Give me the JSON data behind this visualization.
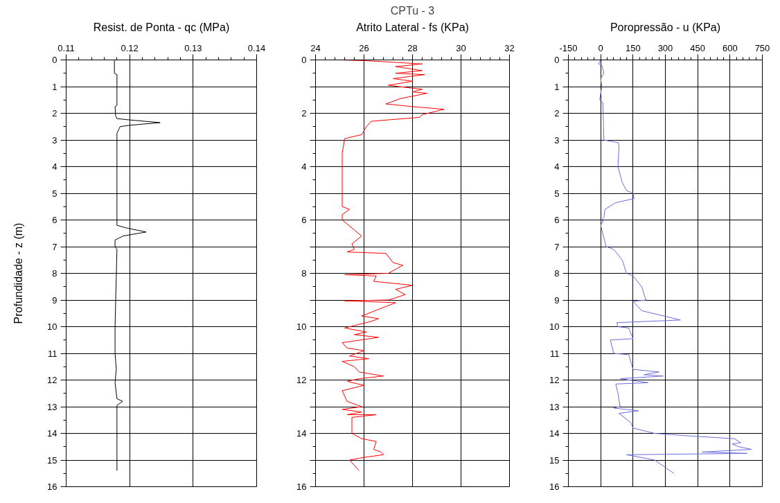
{
  "chart_data": [
    {
      "type": "line",
      "xlabel": "Resist. de Ponta - qc (MPa)",
      "ylabel": "Profundidade - z (m)",
      "xlim": [
        0.11,
        0.14
      ],
      "xticks": [
        0.11,
        0.12,
        0.13,
        0.14
      ],
      "ylim": [
        16,
        0
      ],
      "yticks": [
        0,
        1,
        2,
        3,
        4,
        5,
        6,
        7,
        8,
        9,
        10,
        11,
        12,
        13,
        14,
        15,
        16
      ],
      "grid": true,
      "series": [
        {
          "color": "#000000",
          "x": [
            0.1176,
            0.1176,
            0.118,
            0.118,
            0.1177,
            0.1178,
            0.118,
            0.12,
            0.1248,
            0.12,
            0.1185,
            0.1183,
            0.118,
            0.118,
            0.1195,
            0.1226,
            0.119,
            0.1177,
            0.1177,
            0.118,
            0.1178,
            0.1177,
            0.1177,
            0.1179,
            0.1177,
            0.118,
            0.1189,
            0.118,
            0.118,
            0.118
          ],
          "values": [
            0,
            0.5,
            0.55,
            1.7,
            1.75,
            2.1,
            2.2,
            2.25,
            2.35,
            2.45,
            2.5,
            2.6,
            2.75,
            6.2,
            6.3,
            6.45,
            6.6,
            6.75,
            7.0,
            7.1,
            9,
            10,
            11,
            11.6,
            12.1,
            12.7,
            12.8,
            12.95,
            13.3,
            15.4
          ]
        }
      ]
    },
    {
      "type": "line",
      "title": "CPTu - 3",
      "xlabel": "Atrito Lateral - fs (KPa)",
      "xlim": [
        24,
        32
      ],
      "xticks": [
        24,
        26,
        28,
        30,
        32
      ],
      "ylim": [
        16,
        0
      ],
      "yticks": [
        0,
        {
          "value": 1,
          "label": null
        },
        2,
        {
          "value": 3,
          "label": null
        },
        4,
        {
          "value": 5,
          "label": null
        },
        6,
        {
          "value": 7,
          "label": null
        },
        8,
        {
          "value": 9,
          "label": null
        },
        10,
        {
          "value": 11,
          "label": null
        },
        12,
        {
          "value": 13,
          "label": null
        },
        14,
        {
          "value": 15,
          "label": null
        },
        16
      ],
      "grid": true,
      "series": [
        {
          "color": "#ff0000",
          "x": [
            25.0,
            26.1,
            28.4,
            27.3,
            28.4,
            27.3,
            28.5,
            27.2,
            28.0,
            27.0,
            27.9,
            28.4,
            28.0,
            28.6,
            27.5,
            26.9,
            28.0,
            29.3,
            28.4,
            28.3,
            26.3,
            26.1,
            25.9,
            25.2,
            25.1,
            25.1,
            25.4,
            25.1,
            25.1,
            25.9,
            25.5,
            25.6,
            25.3,
            26.9,
            27.2,
            27.6,
            27.0,
            25.2,
            26.5,
            26.4,
            28.0,
            27.3,
            27.7,
            27.0,
            25.2,
            27.3,
            25.9,
            26.6,
            26.3,
            25.2,
            26.1,
            25.6,
            26.6,
            25.1,
            25.3,
            26.0,
            25.4,
            26.2,
            25.1,
            25.6,
            25.8,
            26.8,
            25.8,
            25.3,
            26.0,
            25.1,
            25.3,
            25.9,
            25.1,
            25.9,
            25.3,
            26.5,
            25.5,
            25.5,
            25.9,
            26.5,
            26.4,
            26.7,
            26.8,
            26.0,
            25.4,
            25.8
          ],
          "values": [
            0,
            0.03,
            0.15,
            0.25,
            0.4,
            0.5,
            0.55,
            0.7,
            0.8,
            0.95,
            1.05,
            1.1,
            1.2,
            1.25,
            1.45,
            1.65,
            1.75,
            1.85,
            2.05,
            2.15,
            2.3,
            2.5,
            2.8,
            2.95,
            3.5,
            5.5,
            5.6,
            5.8,
            6.0,
            6.6,
            6.9,
            7.1,
            7.2,
            7.25,
            7.6,
            7.7,
            8.0,
            8.05,
            8.1,
            8.3,
            8.45,
            8.6,
            8.8,
            9.0,
            9.03,
            9.1,
            9.6,
            9.7,
            9.8,
            10.05,
            10.2,
            10.3,
            10.4,
            10.6,
            10.8,
            10.9,
            11.1,
            11.2,
            11.3,
            11.5,
            11.7,
            11.85,
            11.95,
            12.05,
            12.2,
            12.4,
            12.8,
            13.0,
            13.1,
            13.2,
            13.3,
            13.3,
            13.4,
            14.0,
            14.2,
            14.3,
            14.6,
            14.7,
            14.8,
            14.9,
            15.0,
            15.4
          ]
        }
      ]
    },
    {
      "type": "line",
      "xlabel": "Poropressão - u (KPa)",
      "xlim": [
        -150,
        750
      ],
      "xticks": [
        -150,
        0,
        150,
        300,
        450,
        600,
        750
      ],
      "ylim": [
        16,
        0
      ],
      "yticks": [
        0,
        1,
        2,
        3,
        4,
        5,
        6,
        7,
        8,
        9,
        10,
        11,
        12,
        13,
        14,
        15,
        16
      ],
      "grid": true,
      "series": [
        {
          "color": "#6b6bdc",
          "x": [
            0,
            -10,
            5,
            15,
            0,
            5,
            -5,
            10,
            15,
            80,
            85,
            80,
            100,
            120,
            150,
            155,
            70,
            20,
            15,
            0,
            15,
            0,
            25,
            60,
            100,
            120,
            150,
            190,
            210,
            150,
            190,
            370,
            75,
            80,
            130,
            150,
            45,
            60,
            130,
            150,
            270,
            200,
            290,
            90,
            220,
            70,
            80,
            90,
            60,
            175,
            85,
            140,
            150,
            250,
            420,
            620,
            650,
            610,
            640,
            700,
            470,
            680,
            120,
            250,
            340
          ],
          "values": [
            0,
            0.15,
            0.2,
            0.5,
            0.7,
            1.0,
            1.5,
            1.6,
            3.0,
            3.1,
            3.2,
            4.0,
            4.6,
            4.9,
            5.0,
            5.2,
            5.35,
            5.6,
            5.9,
            6.05,
            6.0,
            6.2,
            7.0,
            7.1,
            7.5,
            8.0,
            8.1,
            8.5,
            9.0,
            9.05,
            9.4,
            9.75,
            9.85,
            10.0,
            10.05,
            10.45,
            10.5,
            11.0,
            11.05,
            11.6,
            11.7,
            11.8,
            11.85,
            11.95,
            12.1,
            12.15,
            12.5,
            13.0,
            13.05,
            13.15,
            13.25,
            13.6,
            13.8,
            14.0,
            14.1,
            14.2,
            14.35,
            14.4,
            14.5,
            14.6,
            14.7,
            14.75,
            14.8,
            15.0,
            15.5
          ]
        }
      ]
    }
  ]
}
